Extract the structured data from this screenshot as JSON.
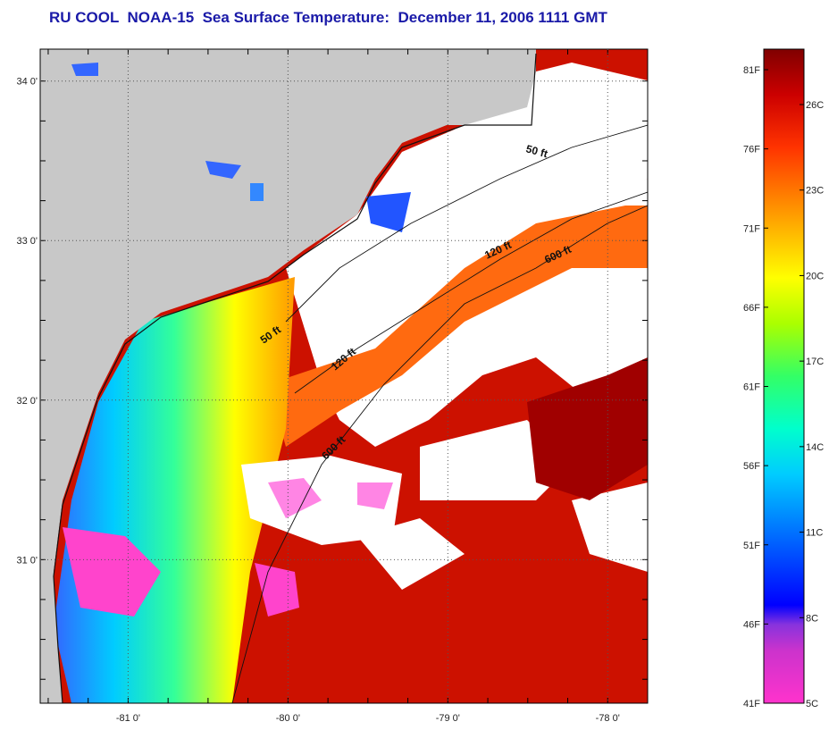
{
  "title": "RU COOL  NOAA-15  Sea Surface Temperature:  December 11, 2006 1111 GMT",
  "map": {
    "lat_labels": [
      {
        "value": 34,
        "label": "34 0'"
      },
      {
        "value": 33,
        "label": "33 0'"
      },
      {
        "value": 32,
        "label": "32 0'"
      },
      {
        "value": 31,
        "label": "31 0'"
      }
    ],
    "lon_labels": [
      {
        "value": -81,
        "label": "-81 0'"
      },
      {
        "value": -80,
        "label": "-80 0'"
      },
      {
        "value": -79,
        "label": "-79 0'"
      },
      {
        "value": -78,
        "label": "-78 0'"
      }
    ],
    "lat_range": [
      30.1,
      34.2
    ],
    "lon_range": [
      -81.55,
      -77.75
    ],
    "contour_labels": [
      "50 ft",
      "120 ft",
      "600 ft",
      "50 ft",
      "120 ft",
      "600 ft"
    ],
    "colors": {
      "land": "#c8c8c8",
      "cloud": "#ffffff",
      "coast": "#111111",
      "grid": "#555555"
    }
  },
  "colorbar": {
    "fahrenheit_labels": [
      "81F",
      "76F",
      "71F",
      "66F",
      "61F",
      "56F",
      "51F",
      "46F",
      "41F"
    ],
    "celsius_labels": [
      "26C",
      "23C",
      "20C",
      "17C",
      "14C",
      "11C",
      "8C",
      "5C"
    ],
    "colors": [
      "#ff33cc",
      "#9933cc",
      "#0000ff",
      "#0088ff",
      "#00ffff",
      "#33ff66",
      "#ffff00",
      "#ff9900",
      "#ff3300",
      "#cc0000",
      "#800000"
    ]
  }
}
